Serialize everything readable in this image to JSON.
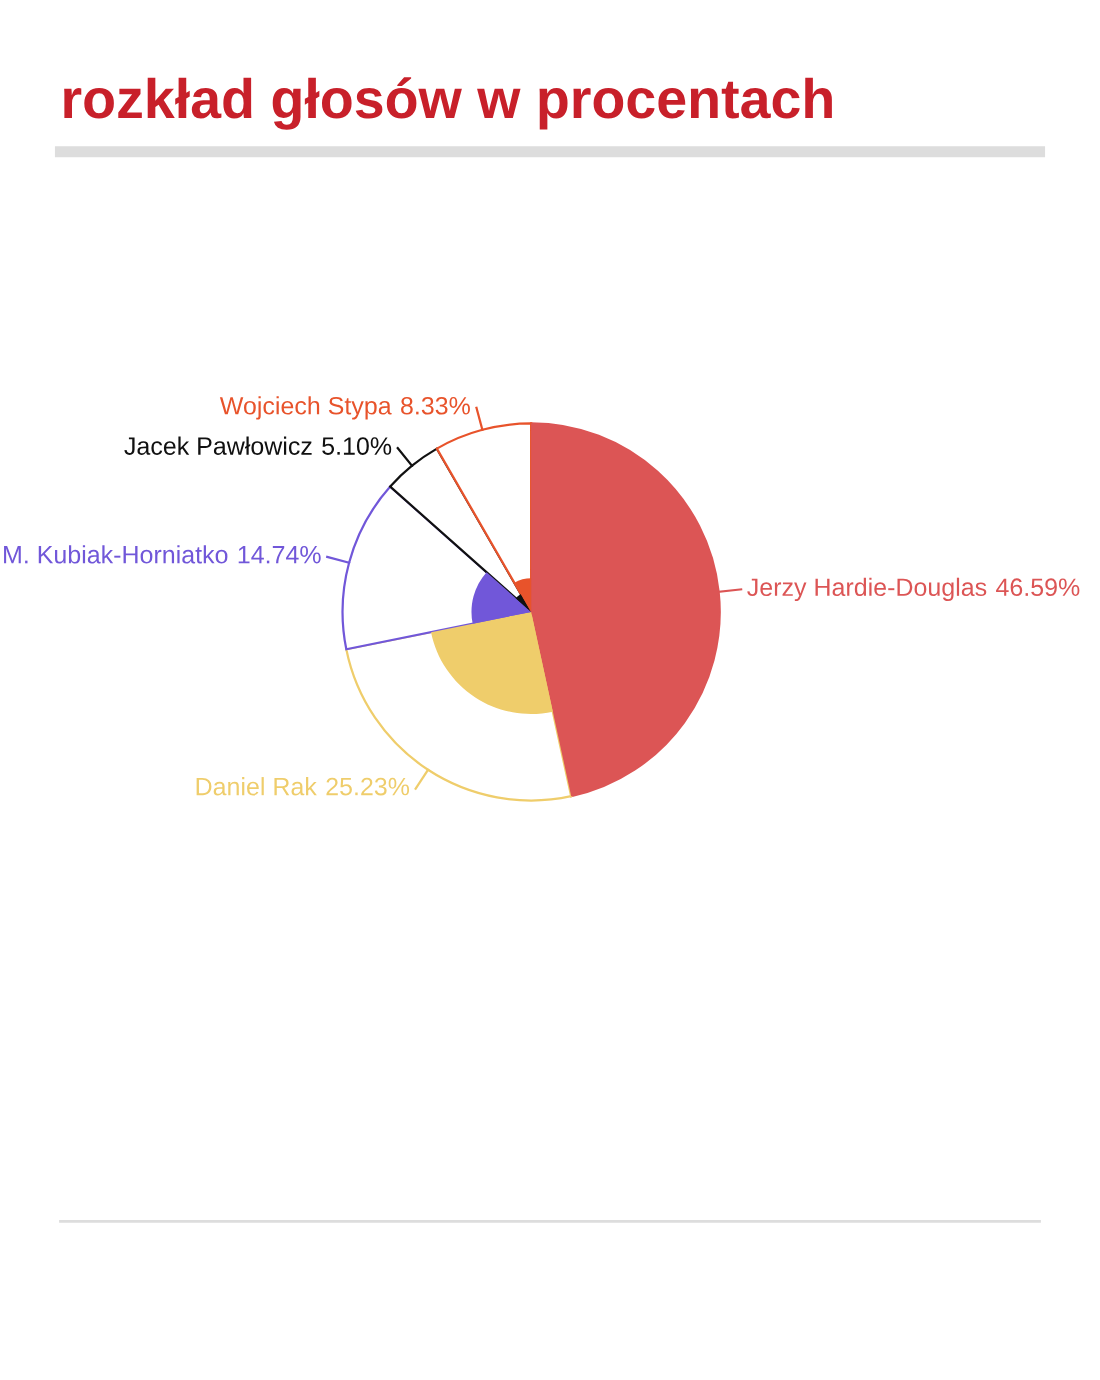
{
  "chart_data": {
    "type": "pie",
    "title": "rozkład głosów w procentach",
    "categories": [
      "Jerzy Hardie-Douglas",
      "Daniel Rak",
      "M. Kubiak-Horniatko",
      "Jacek Pawłowicz",
      "Wojciech Stypa"
    ],
    "values": [
      46.59,
      25.23,
      14.74,
      5.1,
      8.33
    ],
    "colors": [
      "#dc5555",
      "#efcd6b",
      "#7157d9",
      "#111111",
      "#e8532b"
    ],
    "value_labels": [
      "46.59%",
      "25.23%",
      "14.74%",
      "5.10%",
      "8.33%"
    ],
    "legend": false
  }
}
